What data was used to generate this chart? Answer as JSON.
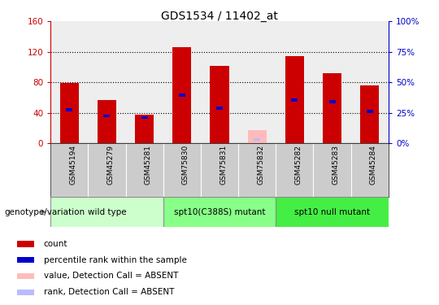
{
  "title": "GDS1534 / 11402_at",
  "samples": [
    "GSM45194",
    "GSM45279",
    "GSM45281",
    "GSM75830",
    "GSM75831",
    "GSM75832",
    "GSM45282",
    "GSM45283",
    "GSM45284"
  ],
  "count_values": [
    79,
    57,
    38,
    126,
    102,
    0,
    114,
    92,
    76
  ],
  "rank_values": [
    44,
    36,
    34,
    63,
    46,
    0,
    57,
    55,
    42
  ],
  "absent_count": [
    0,
    0,
    0,
    0,
    0,
    17,
    0,
    0,
    0
  ],
  "absent_rank": [
    0,
    0,
    0,
    0,
    0,
    5,
    0,
    0,
    0
  ],
  "groups": [
    {
      "label": "wild type",
      "start": 0,
      "end": 2,
      "color": "#ccffcc"
    },
    {
      "label": "spt10(C388S) mutant",
      "start": 3,
      "end": 5,
      "color": "#88ff88"
    },
    {
      "label": "spt10 null mutant",
      "start": 6,
      "end": 8,
      "color": "#44ee44"
    }
  ],
  "ylim_left": [
    0,
    160
  ],
  "ylim_right": [
    0,
    100
  ],
  "yticks_left": [
    0,
    40,
    80,
    120,
    160
  ],
  "yticks_right": [
    0,
    25,
    50,
    75,
    100
  ],
  "ytick_labels_left": [
    "0",
    "40",
    "80",
    "120",
    "160"
  ],
  "ytick_labels_right": [
    "0%",
    "25%",
    "50%",
    "75%",
    "100%"
  ],
  "left_axis_color": "#cc0000",
  "right_axis_color": "#0000cc",
  "bar_color_count": "#cc0000",
  "bar_color_rank": "#0000cc",
  "bar_color_absent_count": "#ffbbbb",
  "bar_color_absent_rank": "#bbbbff",
  "plot_bg_color": "#eeeeee",
  "sample_bg_color": "#cccccc",
  "genotype_label": "genotype/variation",
  "legend_items": [
    {
      "label": "count",
      "color": "#cc0000"
    },
    {
      "label": "percentile rank within the sample",
      "color": "#0000cc"
    },
    {
      "label": "value, Detection Call = ABSENT",
      "color": "#ffbbbb"
    },
    {
      "label": "rank, Detection Call = ABSENT",
      "color": "#bbbbff"
    }
  ]
}
